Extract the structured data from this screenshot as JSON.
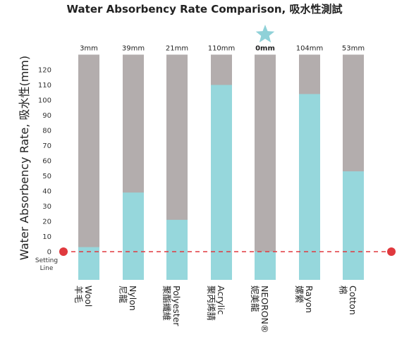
{
  "chart_data": {
    "type": "bar",
    "title": "Water Absorbency Rate Comparison, 吸水性測試",
    "ylabel": "Water Absorbency Rate, 吸水性(mm)",
    "ylim": [
      0,
      120
    ],
    "yticks": [
      0,
      10,
      20,
      30,
      40,
      50,
      60,
      70,
      80,
      90,
      100,
      110,
      120
    ],
    "capacity": 130,
    "categories": [
      {
        "en": "Wool",
        "zh": "羊毛"
      },
      {
        "en": "Nylon",
        "zh": "尼龍"
      },
      {
        "en": "Polyester",
        "zh": "聚酯纖維"
      },
      {
        "en": "Acrylic",
        "zh": "聚丙烯腈"
      },
      {
        "en": "NEORON",
        "zh": "妮美龍",
        "registered": "®"
      },
      {
        "en": "Rayon",
        "zh": "嫘縈"
      },
      {
        "en": "Cotton",
        "zh": "棉"
      }
    ],
    "values": [
      3,
      39,
      21,
      110,
      0,
      104,
      53
    ],
    "value_labels": [
      "3mm",
      "39mm",
      "21mm",
      "110mm",
      "0mm",
      "104mm",
      "53mm"
    ],
    "highlight_index": 4,
    "highlight_marker": "star-icon",
    "setting_line": {
      "value": 0,
      "label_line1": "Setting",
      "label_line2": "Line"
    },
    "grid": false,
    "legend": "none",
    "colors": {
      "absorbed": "#96d7dc",
      "remaining": "#b3adad",
      "setting_line": "#e0393e",
      "star": "#8fd1d8",
      "text": "#222222"
    }
  }
}
